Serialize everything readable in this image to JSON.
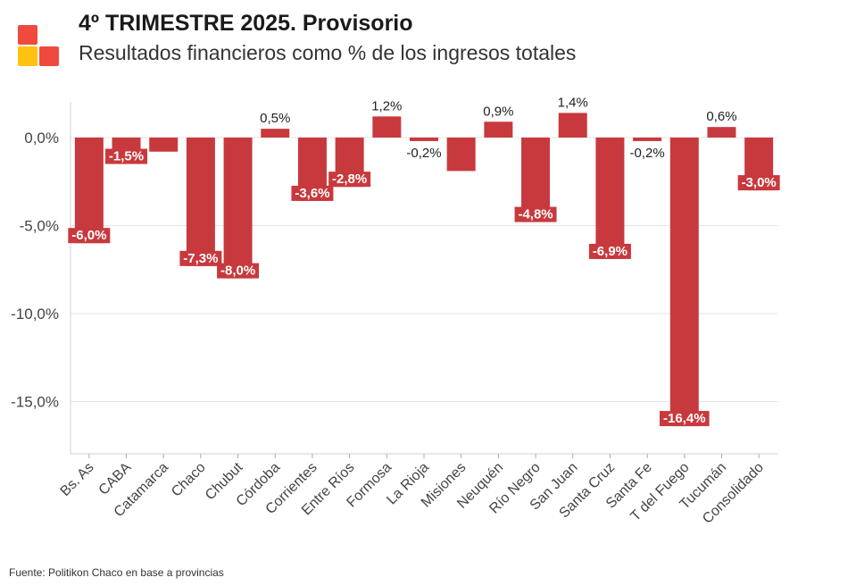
{
  "header": {
    "title": "4º TRIMESTRE 2025. Provisorio",
    "subtitle": "Resultados financieros como % de los ingresos totales"
  },
  "footer": {
    "source": "Fuente: Politikon Chaco en base a provincias"
  },
  "colors": {
    "bar": "#c8393d",
    "logo_red": "#f04a3e",
    "logo_yellow": "#ffc20e"
  },
  "chart_data": {
    "type": "bar",
    "title": "",
    "xlabel": "",
    "ylabel": "",
    "ylim": [
      -17.8,
      2.0
    ],
    "yticks": [
      0,
      -5,
      -10,
      -15
    ],
    "ytick_labels": [
      "0,0%",
      "-5,0%",
      "-10,0%",
      "-15,0%"
    ],
    "grid": true,
    "categories": [
      "Bs. As",
      "CABA",
      "Catamarca",
      "Chaco",
      "Chubut",
      "Córdoba",
      "Corrientes",
      "Entre Ríos",
      "Formosa",
      "La Rioja",
      "Misiones",
      "Neuquén",
      "Río Negro",
      "San Juan",
      "Santa Cruz",
      "Santa Fe",
      "T del Fuego",
      "Tucumán",
      "Consolidado"
    ],
    "values": [
      -6.0,
      -1.5,
      -0.8,
      -7.3,
      -8.0,
      0.5,
      -3.6,
      -2.8,
      1.2,
      -0.2,
      -1.9,
      0.9,
      -4.8,
      1.4,
      -6.9,
      -0.2,
      -16.4,
      0.6,
      -3.0
    ],
    "data_labels": [
      "-6,0%",
      "-1,5%",
      "",
      "-7,3%",
      "-8,0%",
      "0,5%",
      "-3,6%",
      "-2,8%",
      "1,2%",
      "-0,2%",
      "",
      "0,9%",
      "-4,8%",
      "1,4%",
      "-6,9%",
      "-0,2%",
      "-16,4%",
      "0,6%",
      "-3,0%"
    ]
  }
}
